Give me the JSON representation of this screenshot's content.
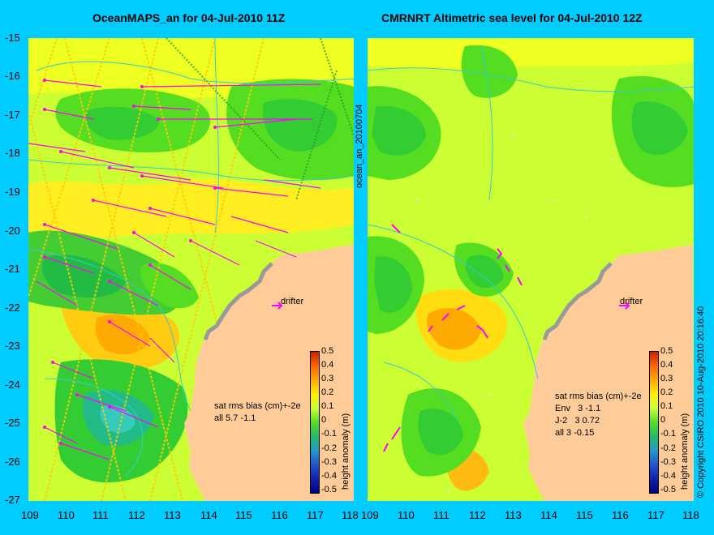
{
  "left_panel": {
    "title": "OceanMAPS_an for 04-Jul-2010 11Z",
    "side_label": "ocean_an_20100704",
    "rms_header": "sat rms bias (cm)+-2e",
    "rms_rows": [
      "all 5.7 -1.1"
    ],
    "drifter_label": "drifter"
  },
  "right_panel": {
    "title": "CMRNRT Altimetric sea level  for 04-Jul-2010 12Z",
    "side_label": "© Copyright CSIRO 2010   10-Aug-2010 20:16:40",
    "rms_header": "sat rms bias (cm)+-2e",
    "rms_rows": [
      "Env   3 -1.1",
      "J-2   3 0.72",
      "all 3 -0.15"
    ],
    "drifter_label": "drifter"
  },
  "axes": {
    "y_ticks": [
      "-15",
      "-16",
      "-17",
      "-18",
      "-19",
      "-20",
      "-21",
      "-22",
      "-23",
      "-24",
      "-25",
      "-26",
      "-27"
    ],
    "x_ticks_left": [
      "109",
      "110",
      "111",
      "112",
      "113",
      "114",
      "115",
      "116",
      "117",
      "118"
    ],
    "x_ticks_right": [
      "109",
      "110",
      "111",
      "112",
      "113",
      "114",
      "115",
      "116",
      "117",
      "118"
    ]
  },
  "colorbar": {
    "label": "height anomaly (m)",
    "ticks": [
      "0.5",
      "0.4",
      "0.3",
      "0.2",
      "0.1",
      "0",
      "-0.1",
      "-0.2",
      "-0.3",
      "-0.4",
      "-0.5"
    ]
  },
  "colors": {
    "background": "#00ccff",
    "land": "#ffcc99",
    "positive": "#ffcc00",
    "neutral": "#ccff33",
    "negative": "#33cc33",
    "vector": "#ff00ff"
  }
}
